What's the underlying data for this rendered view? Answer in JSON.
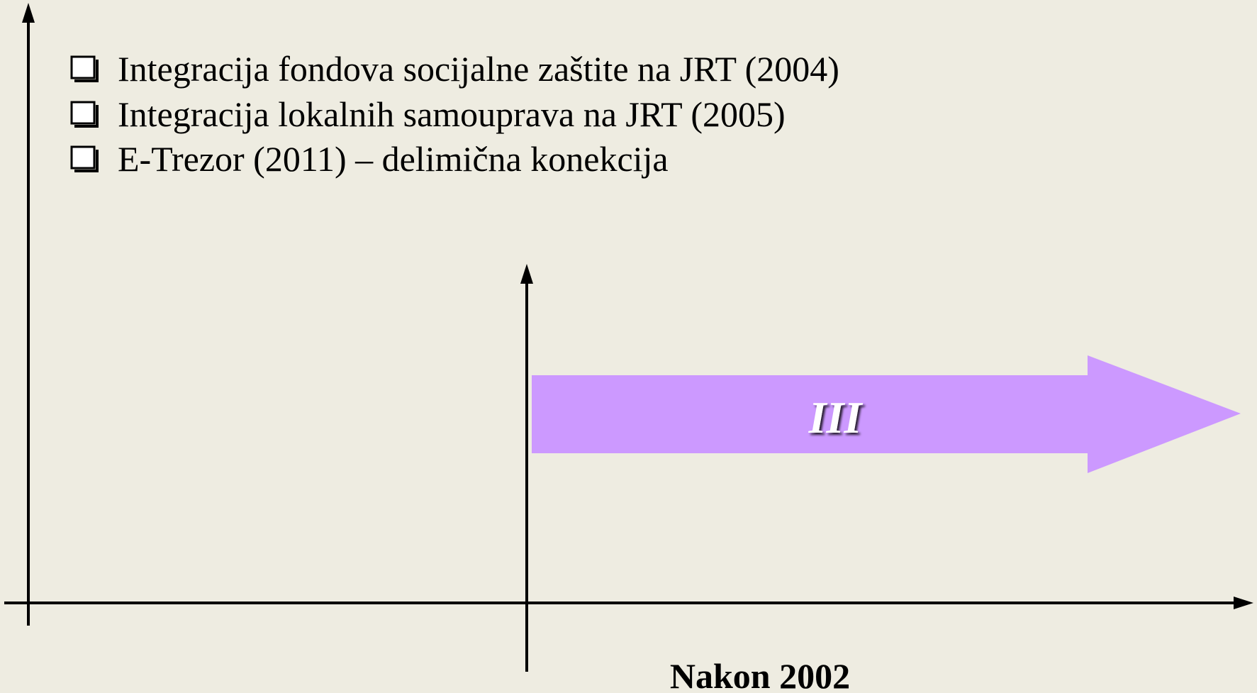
{
  "items": [
    "Integracija fondova socijalne zaštite na JRT (2004)",
    "Integracija lokalnih samouprava na JRT (2005)",
    "E-Trezor (2011) – delimična konekcija"
  ],
  "phase_label": "III",
  "period_label": "Nakon 2002"
}
